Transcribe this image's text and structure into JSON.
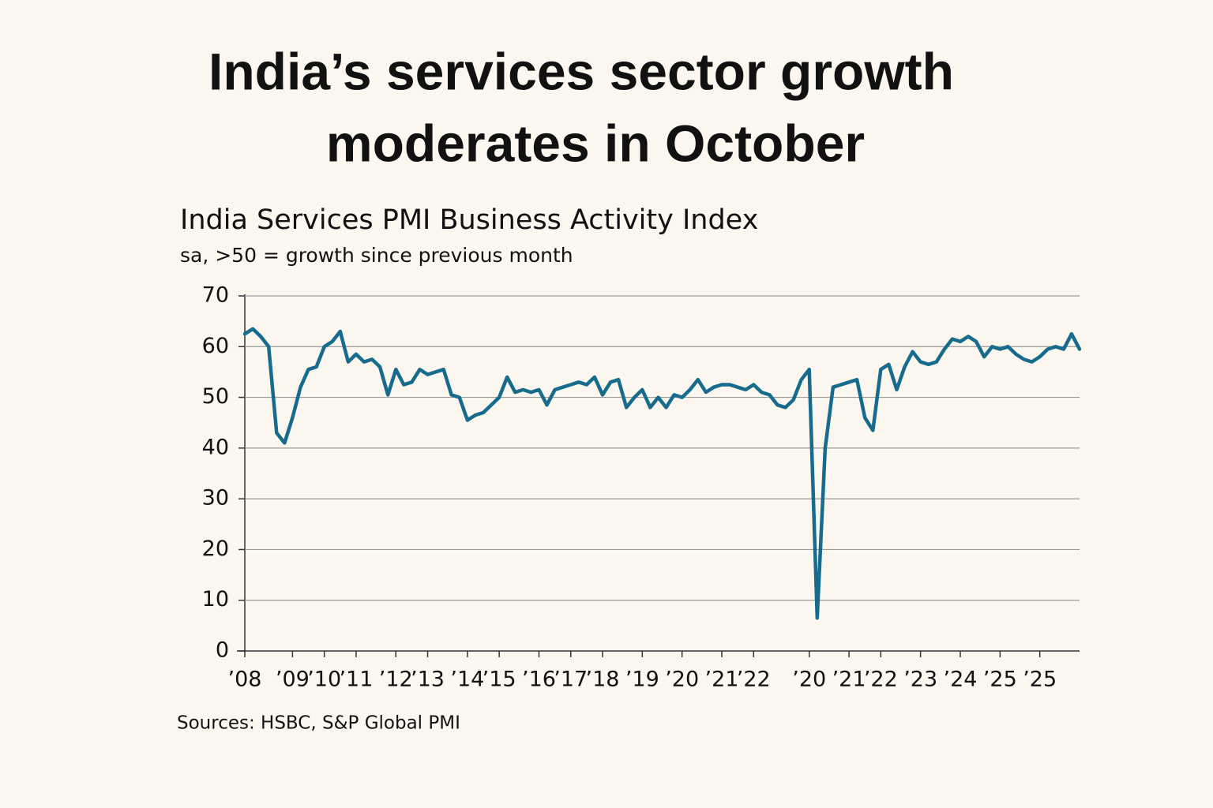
{
  "chart_data": {
    "type": "line",
    "title": [
      "India’s services sector growth",
      "moderates in October"
    ],
    "subtitle": "India Services PMI Business Activity Index",
    "note": "sa, >50 = growth since previous month",
    "source": "Sources: HSBC, S&P Global PMI",
    "categories": [
      "’08",
      null,
      null,
      null,
      null,
      null,
      "’09",
      null,
      null,
      null,
      "’10",
      null,
      null,
      null,
      "’11",
      null,
      null,
      null,
      null,
      "’12",
      null,
      null,
      null,
      "’13",
      null,
      null,
      null,
      null,
      "’14",
      null,
      null,
      null,
      "’15",
      null,
      null,
      null,
      null,
      "’16",
      null,
      null,
      null,
      "’17",
      null,
      null,
      null,
      "’18",
      null,
      null,
      null,
      null,
      "’19",
      null,
      null,
      null,
      null,
      "’20",
      null,
      null,
      null,
      null,
      "’21",
      null,
      null,
      null,
      "’22",
      null,
      null,
      null,
      null,
      null,
      null,
      "’20",
      null,
      null,
      null,
      null,
      "’21",
      null,
      null,
      null,
      "’22",
      null,
      null,
      null,
      null,
      "’23",
      null,
      null,
      null,
      null,
      "’24",
      null,
      null,
      null,
      null,
      "’25",
      null,
      null,
      null,
      null,
      "’25",
      null,
      null,
      null,
      null,
      null
    ],
    "series": [
      {
        "color": "#176b8c",
        "values": [
          62.5,
          63.5,
          62,
          60,
          43,
          41,
          46,
          52,
          55.5,
          56,
          60,
          61,
          63,
          57,
          58.5,
          57,
          57.5,
          56,
          50.5,
          55.5,
          52.5,
          53,
          55.5,
          54.5,
          55,
          55.5,
          50.5,
          50,
          45.5,
          46.5,
          47,
          48.5,
          50,
          54,
          51,
          51.5,
          51,
          51.5,
          48.5,
          51.5,
          52,
          52.5,
          53,
          52.5,
          54,
          50.5,
          53,
          53.5,
          48,
          50,
          51.5,
          48,
          50,
          48,
          50.5,
          50,
          51.5,
          53.5,
          51,
          52,
          52.5,
          52.5,
          52,
          51.5,
          52.5,
          51,
          50.5,
          48.5,
          48,
          49.5,
          53.5,
          55.5,
          6.5,
          40,
          52,
          52.5,
          53,
          53.5,
          46,
          43.5,
          55.5,
          56.5,
          51.5,
          56,
          59,
          57,
          56.5,
          57,
          59.5,
          61.5,
          61,
          62,
          61,
          58,
          60,
          59.5,
          60,
          58.5,
          57.5,
          57,
          58,
          59.5,
          60,
          59.5,
          62.5,
          59.5
        ]
      }
    ],
    "ylim": [
      0,
      70
    ],
    "yticks": [
      0,
      10,
      20,
      30,
      40,
      50,
      60,
      70
    ],
    "grid": true
  }
}
